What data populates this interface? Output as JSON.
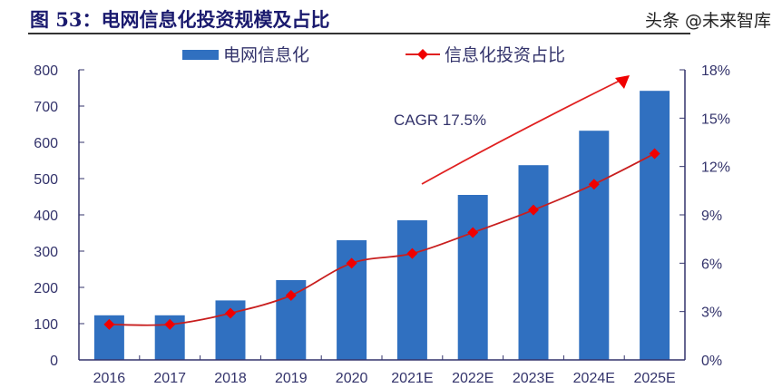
{
  "title": "图 53：电网信息化投资规模及占比",
  "watermark": "头条 @未来智库",
  "chart_data": {
    "type": "bar+line",
    "categories": [
      "2016",
      "2017",
      "2018",
      "2019",
      "2020",
      "2021E",
      "2022E",
      "2023E",
      "2024E",
      "2025E"
    ],
    "series": [
      {
        "name": "电网信息化",
        "type": "bar",
        "axis": "left",
        "color": "#3070C0",
        "values": [
          123,
          123,
          164,
          220,
          330,
          385,
          455,
          537,
          632,
          742
        ]
      },
      {
        "name": "信息化投资占比",
        "type": "line",
        "axis": "right",
        "color": "#E00000",
        "marker": "diamond",
        "values": [
          2.2,
          2.2,
          2.9,
          4.0,
          6.0,
          6.6,
          7.9,
          9.3,
          10.9,
          12.8
        ]
      }
    ],
    "left_axis": {
      "range": [
        0,
        800
      ],
      "ticks": [
        "0",
        "100",
        "200",
        "300",
        "400",
        "500",
        "600",
        "700",
        "800"
      ]
    },
    "right_axis": {
      "range": [
        0,
        18
      ],
      "ticks": [
        "0%",
        "3%",
        "6%",
        "9%",
        "12%",
        "15%",
        "18%"
      ]
    },
    "annotation": "CAGR 17.5%",
    "legend_placement": "top",
    "grid": false
  }
}
